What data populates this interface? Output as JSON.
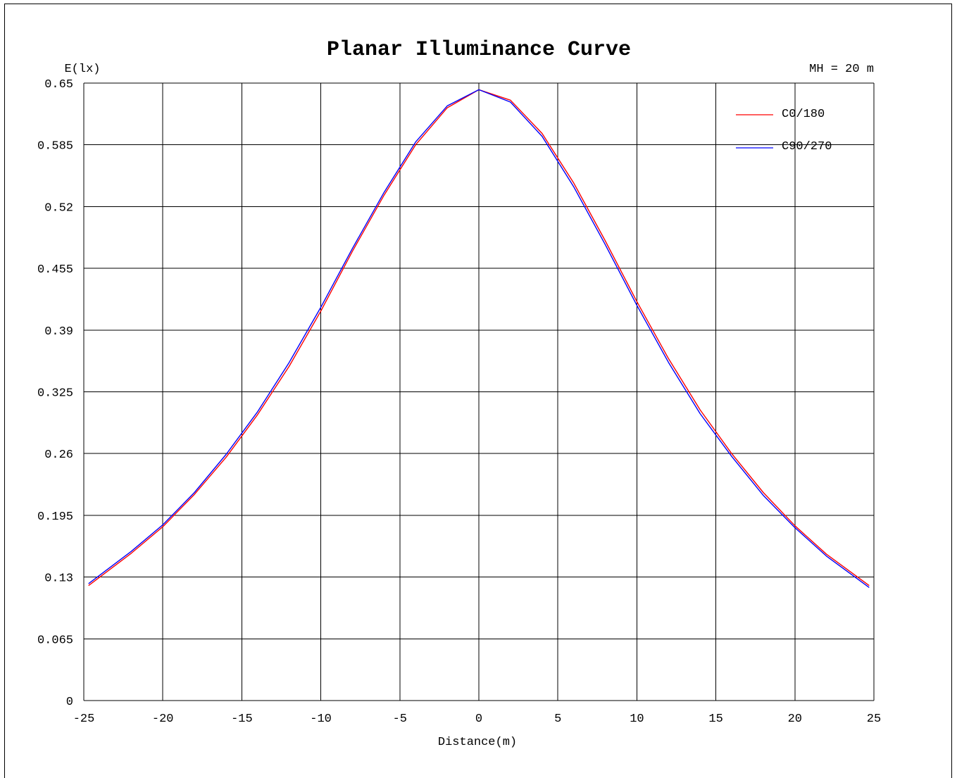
{
  "chart_data": {
    "type": "line",
    "title": "Planar Illuminance Curve",
    "ylabel": "E(lx)",
    "xlabel": "Distance(m)",
    "annotation": "MH = 20 m",
    "xlim": [
      -25,
      25
    ],
    "ylim": [
      0,
      0.65
    ],
    "x_ticks": [
      -25,
      -20,
      -15,
      -10,
      -5,
      0,
      5,
      10,
      15,
      20,
      25
    ],
    "y_ticks": [
      0,
      0.065,
      0.13,
      0.195,
      0.26,
      0.325,
      0.39,
      0.455,
      0.52,
      0.585,
      0.65
    ],
    "y_tick_labels": [
      "0",
      "0.065",
      "0.13",
      "0.195",
      "0.26",
      "0.325",
      "0.39",
      "0.455",
      "0.52",
      "0.585",
      "0.65"
    ],
    "grid": true,
    "legend_position": "top-right",
    "x": [
      -24.7,
      -22,
      -20,
      -18,
      -16,
      -14,
      -12,
      -10,
      -8,
      -6,
      -4,
      -2,
      0,
      2,
      4,
      6,
      8,
      10,
      12,
      14,
      16,
      18,
      20,
      22,
      24.7
    ],
    "series": [
      {
        "name": "C0/180",
        "color": "#ff0000",
        "values": [
          0.121,
          0.155,
          0.183,
          0.217,
          0.256,
          0.301,
          0.352,
          0.41,
          0.473,
          0.532,
          0.585,
          0.624,
          0.643,
          0.632,
          0.597,
          0.545,
          0.484,
          0.42,
          0.36,
          0.306,
          0.26,
          0.219,
          0.184,
          0.154,
          0.121
        ]
      },
      {
        "name": "C90/270",
        "color": "#0000ff",
        "values": [
          0.123,
          0.157,
          0.185,
          0.219,
          0.259,
          0.304,
          0.356,
          0.414,
          0.476,
          0.535,
          0.588,
          0.626,
          0.643,
          0.63,
          0.594,
          0.541,
          0.48,
          0.416,
          0.356,
          0.302,
          0.257,
          0.216,
          0.182,
          0.152,
          0.119
        ]
      }
    ]
  }
}
